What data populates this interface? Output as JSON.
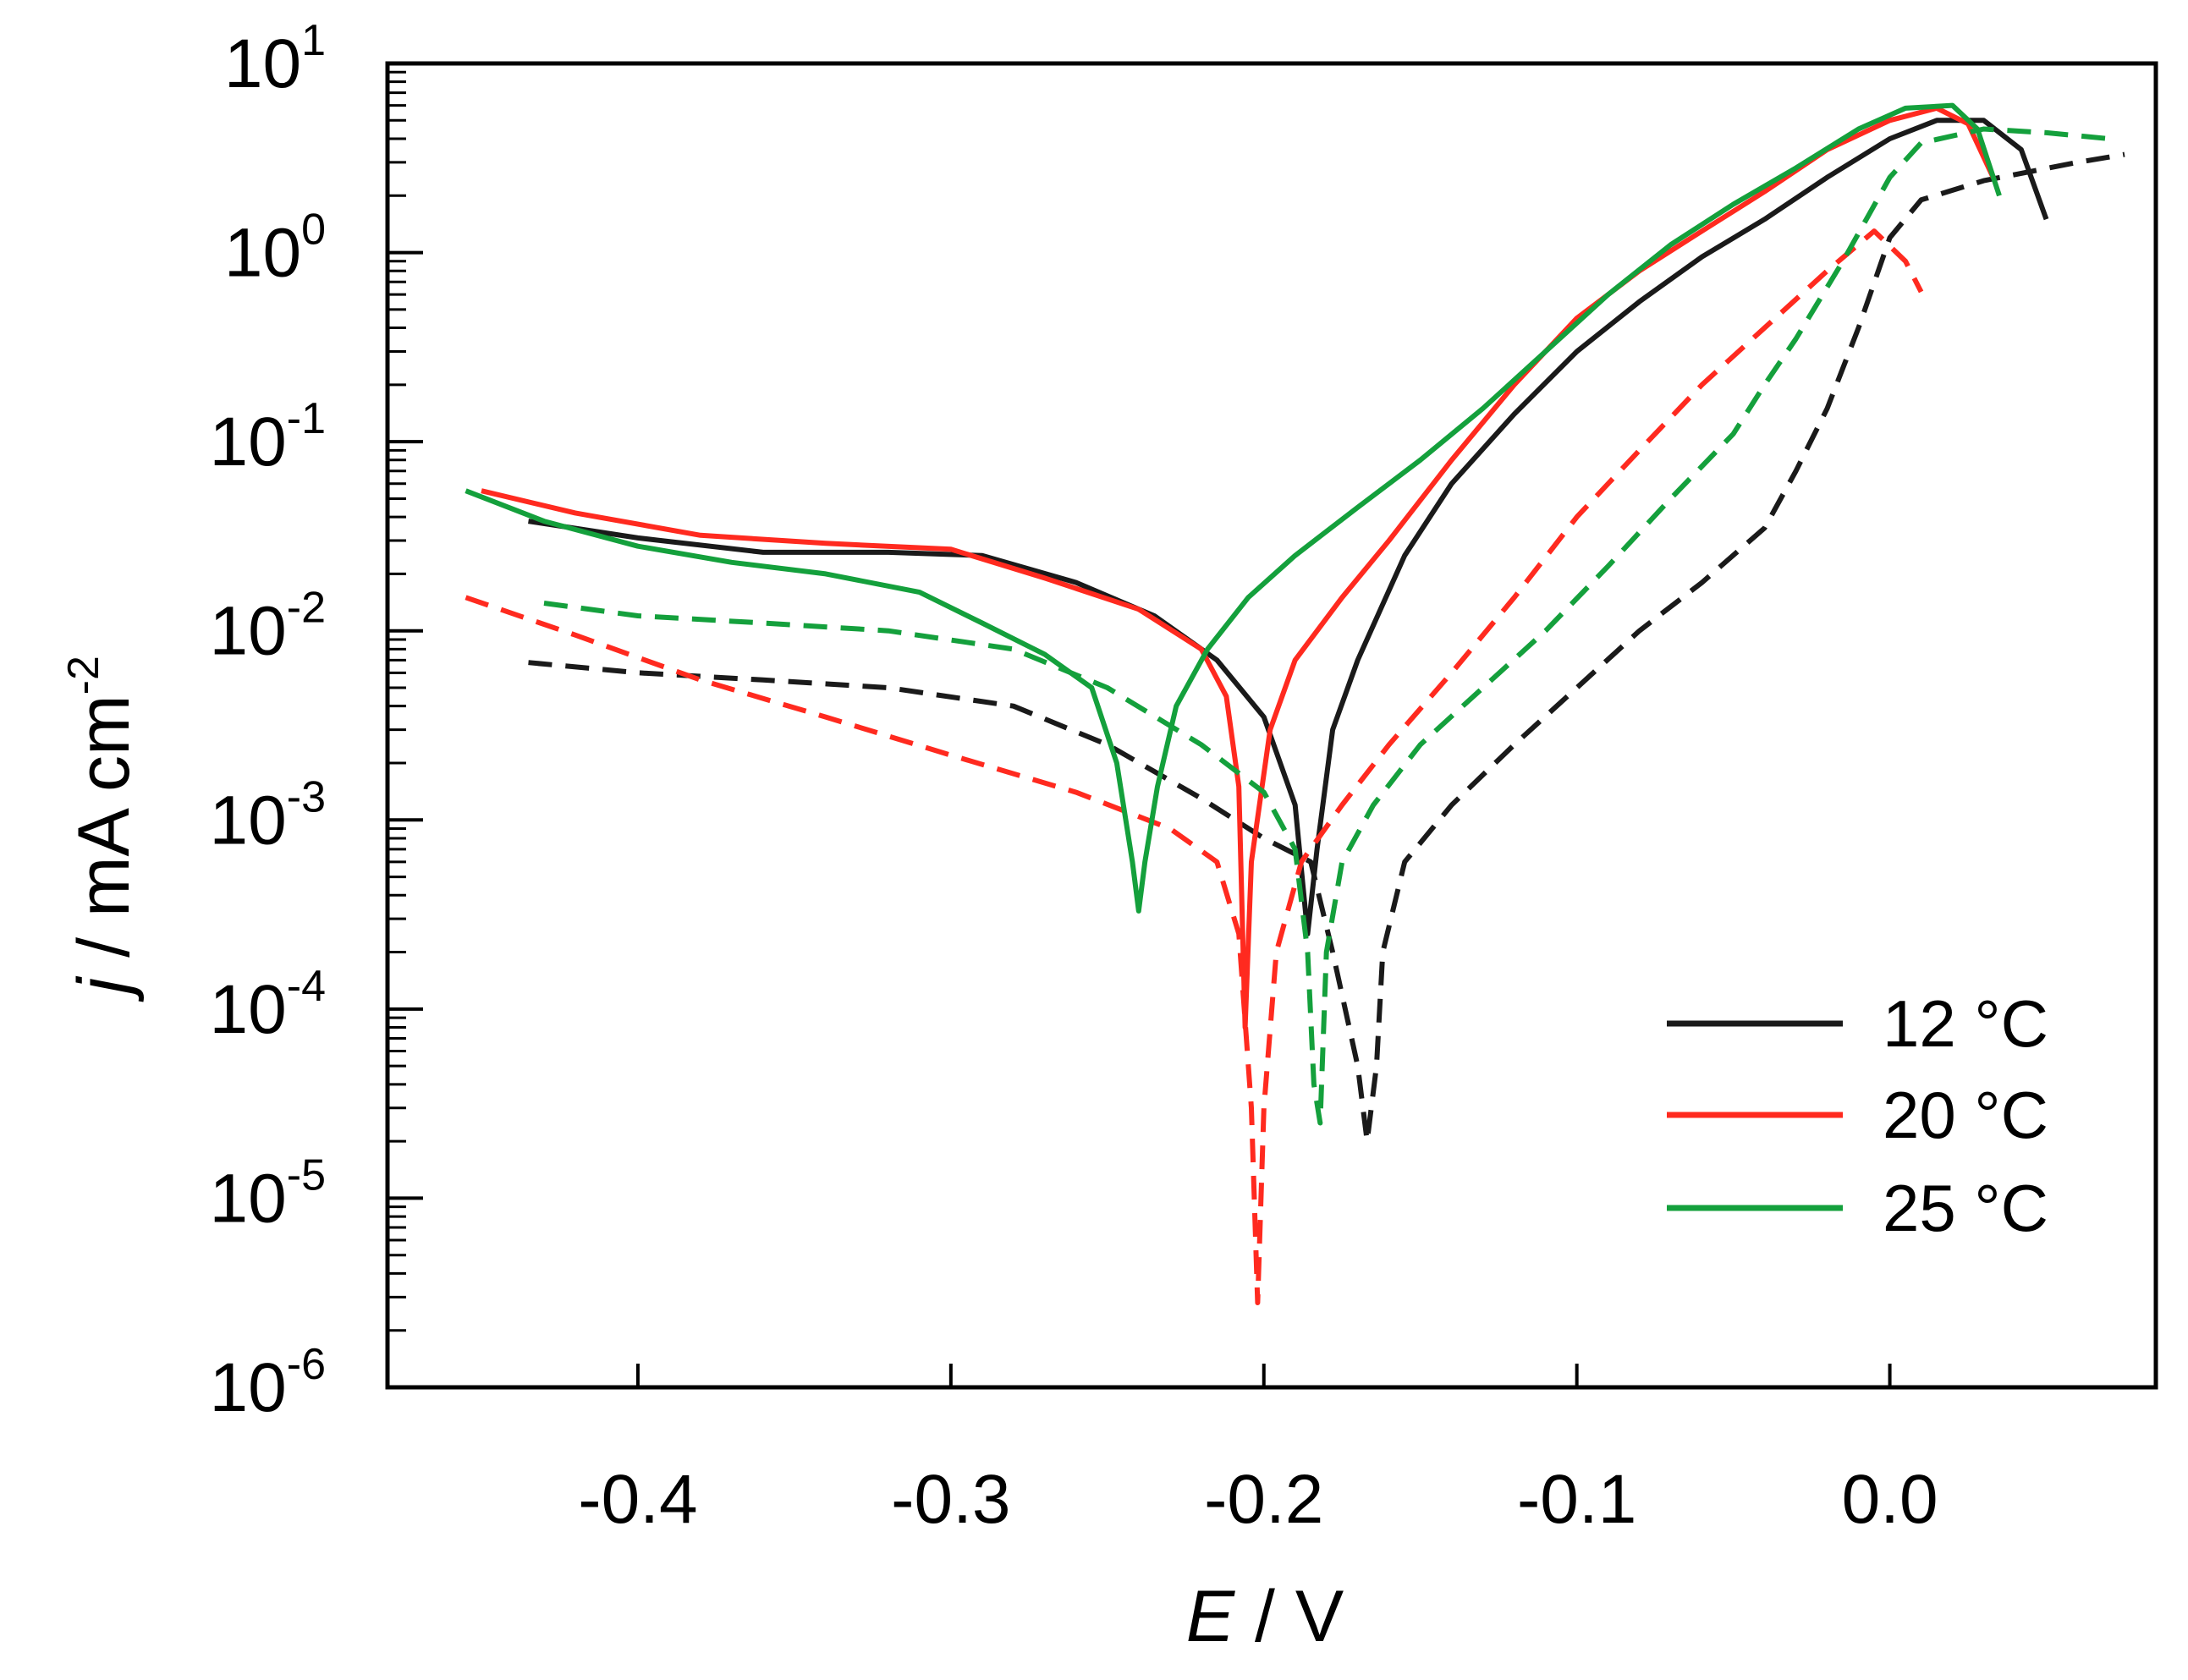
{
  "chart_data": {
    "type": "line",
    "title": "",
    "xlabel": {
      "var": "E",
      "unit": " / V"
    },
    "ylabel": {
      "var": "j",
      "unit": " / mA cm",
      "exp": "-2"
    },
    "xlim": [
      -0.48,
      0.085
    ],
    "ylim_log10": [
      -6,
      1
    ],
    "y_scale": "log",
    "x_ticks": [
      {
        "value": -0.4,
        "label": "-0.4"
      },
      {
        "value": -0.3,
        "label": "-0.3"
      },
      {
        "value": -0.2,
        "label": "-0.2"
      },
      {
        "value": -0.1,
        "label": "-0.1"
      },
      {
        "value": 0.0,
        "label": "0.0"
      }
    ],
    "y_ticks": [
      {
        "exp": 1,
        "base": "10",
        "sup": "1"
      },
      {
        "exp": 0,
        "base": "10",
        "sup": "0"
      },
      {
        "exp": -1,
        "base": "10",
        "sup": "-1"
      },
      {
        "exp": -2,
        "base": "10",
        "sup": "-2"
      },
      {
        "exp": -3,
        "base": "10",
        "sup": "-3"
      },
      {
        "exp": -4,
        "base": "10",
        "sup": "-4"
      },
      {
        "exp": -5,
        "base": "10",
        "sup": "-5"
      },
      {
        "exp": -6,
        "base": "10",
        "sup": "-6"
      }
    ],
    "legend": {
      "position": "lower-right",
      "entries": [
        {
          "label": "12 °C",
          "color": "#1a1a1a"
        },
        {
          "label": "20 °C",
          "color": "#ff2a1f"
        },
        {
          "label": "25 °C",
          "color": "#14a03c"
        }
      ]
    },
    "series": [
      {
        "name": "12 °C solid",
        "color": "#1a1a1a",
        "dash": "solid",
        "points": [
          [
            -0.435,
            0.038
          ],
          [
            -0.4,
            0.031
          ],
          [
            -0.36,
            0.026
          ],
          [
            -0.32,
            0.026
          ],
          [
            -0.29,
            0.025
          ],
          [
            -0.26,
            0.018
          ],
          [
            -0.235,
            0.012
          ],
          [
            -0.215,
            0.007
          ],
          [
            -0.2,
            0.0035
          ],
          [
            -0.19,
            0.0012
          ],
          [
            -0.186,
            0.00025
          ],
          [
            -0.183,
            0.0007
          ],
          [
            -0.178,
            0.003
          ],
          [
            -0.17,
            0.007
          ],
          [
            -0.155,
            0.025
          ],
          [
            -0.14,
            0.06
          ],
          [
            -0.12,
            0.14
          ],
          [
            -0.1,
            0.3
          ],
          [
            -0.08,
            0.55
          ],
          [
            -0.06,
            0.95
          ],
          [
            -0.04,
            1.5
          ],
          [
            -0.02,
            2.5
          ],
          [
            0.0,
            4.0
          ],
          [
            0.015,
            5.0
          ],
          [
            0.03,
            5.0
          ],
          [
            0.042,
            3.5
          ],
          [
            0.05,
            1.5
          ]
        ]
      },
      {
        "name": "12 °C dashed",
        "color": "#1a1a1a",
        "dash": "dashed",
        "points": [
          [
            -0.435,
            0.0068
          ],
          [
            -0.4,
            0.006
          ],
          [
            -0.36,
            0.0055
          ],
          [
            -0.32,
            0.005
          ],
          [
            -0.28,
            0.004
          ],
          [
            -0.25,
            0.0025
          ],
          [
            -0.22,
            0.0013
          ],
          [
            -0.2,
            0.0008
          ],
          [
            -0.185,
            0.0006
          ],
          [
            -0.178,
            0.0002
          ],
          [
            -0.17,
            5e-05
          ],
          [
            -0.167,
            2e-05
          ],
          [
            -0.164,
            5e-05
          ],
          [
            -0.162,
            0.0002
          ],
          [
            -0.155,
            0.0006
          ],
          [
            -0.14,
            0.0012
          ],
          [
            -0.12,
            0.0025
          ],
          [
            -0.1,
            0.005
          ],
          [
            -0.08,
            0.01
          ],
          [
            -0.06,
            0.018
          ],
          [
            -0.04,
            0.035
          ],
          [
            -0.03,
            0.07
          ],
          [
            -0.02,
            0.15
          ],
          [
            -0.01,
            0.4
          ],
          [
            0.0,
            1.2
          ],
          [
            0.01,
            1.9
          ],
          [
            0.03,
            2.4
          ],
          [
            0.06,
            3.0
          ],
          [
            0.075,
            3.3
          ]
        ]
      },
      {
        "name": "20 °C solid",
        "color": "#ff2a1f",
        "dash": "solid",
        "points": [
          [
            -0.45,
            0.055
          ],
          [
            -0.42,
            0.042
          ],
          [
            -0.38,
            0.032
          ],
          [
            -0.34,
            0.029
          ],
          [
            -0.3,
            0.027
          ],
          [
            -0.27,
            0.019
          ],
          [
            -0.24,
            0.013
          ],
          [
            -0.22,
            0.008
          ],
          [
            -0.212,
            0.0045
          ],
          [
            -0.208,
            0.0015
          ],
          [
            -0.206,
            8e-05
          ],
          [
            -0.204,
            0.0006
          ],
          [
            -0.198,
            0.003
          ],
          [
            -0.19,
            0.007
          ],
          [
            -0.175,
            0.015
          ],
          [
            -0.16,
            0.03
          ],
          [
            -0.14,
            0.08
          ],
          [
            -0.12,
            0.2
          ],
          [
            -0.1,
            0.45
          ],
          [
            -0.08,
            0.8
          ],
          [
            -0.06,
            1.3
          ],
          [
            -0.04,
            2.1
          ],
          [
            -0.02,
            3.5
          ],
          [
            0.0,
            5.0
          ],
          [
            0.015,
            5.8
          ],
          [
            0.025,
            4.8
          ],
          [
            0.033,
            2.5
          ]
        ]
      },
      {
        "name": "20 °C dashed",
        "color": "#ff2a1f",
        "dash": "dashed",
        "points": [
          [
            -0.455,
            0.015
          ],
          [
            -0.42,
            0.0095
          ],
          [
            -0.38,
            0.0055
          ],
          [
            -0.34,
            0.0035
          ],
          [
            -0.3,
            0.0022
          ],
          [
            -0.26,
            0.0014
          ],
          [
            -0.23,
            0.0009
          ],
          [
            -0.215,
            0.0006
          ],
          [
            -0.208,
            0.00025
          ],
          [
            -0.204,
            3e-05
          ],
          [
            -0.202,
            2.8e-06
          ],
          [
            -0.2,
            3e-05
          ],
          [
            -0.196,
            0.0002
          ],
          [
            -0.188,
            0.0006
          ],
          [
            -0.175,
            0.0012
          ],
          [
            -0.16,
            0.0025
          ],
          [
            -0.14,
            0.006
          ],
          [
            -0.12,
            0.015
          ],
          [
            -0.1,
            0.04
          ],
          [
            -0.08,
            0.09
          ],
          [
            -0.06,
            0.2
          ],
          [
            -0.04,
            0.4
          ],
          [
            -0.02,
            0.8
          ],
          [
            -0.005,
            1.3
          ],
          [
            0.005,
            0.9
          ],
          [
            0.01,
            0.62
          ]
        ]
      },
      {
        "name": "25 °C solid",
        "color": "#14a03c",
        "dash": "solid",
        "points": [
          [
            -0.455,
            0.055
          ],
          [
            -0.43,
            0.038
          ],
          [
            -0.4,
            0.028
          ],
          [
            -0.37,
            0.023
          ],
          [
            -0.34,
            0.02
          ],
          [
            -0.31,
            0.016
          ],
          [
            -0.29,
            0.011
          ],
          [
            -0.27,
            0.0075
          ],
          [
            -0.255,
            0.005
          ],
          [
            -0.247,
            0.002
          ],
          [
            -0.242,
            0.0006
          ],
          [
            -0.24,
            0.00033
          ],
          [
            -0.238,
            0.0006
          ],
          [
            -0.234,
            0.0015
          ],
          [
            -0.228,
            0.004
          ],
          [
            -0.218,
            0.008
          ],
          [
            -0.205,
            0.015
          ],
          [
            -0.19,
            0.025
          ],
          [
            -0.17,
            0.045
          ],
          [
            -0.15,
            0.08
          ],
          [
            -0.13,
            0.15
          ],
          [
            -0.11,
            0.3
          ],
          [
            -0.09,
            0.6
          ],
          [
            -0.07,
            1.1
          ],
          [
            -0.05,
            1.8
          ],
          [
            -0.03,
            2.8
          ],
          [
            -0.01,
            4.5
          ],
          [
            0.005,
            5.8
          ],
          [
            0.02,
            6.0
          ],
          [
            0.028,
            4.5
          ],
          [
            0.035,
            2.0
          ]
        ]
      },
      {
        "name": "25 °C dashed",
        "color": "#14a03c",
        "dash": "dashed",
        "points": [
          [
            -0.43,
            0.014
          ],
          [
            -0.4,
            0.012
          ],
          [
            -0.36,
            0.011
          ],
          [
            -0.32,
            0.01
          ],
          [
            -0.28,
            0.008
          ],
          [
            -0.25,
            0.005
          ],
          [
            -0.22,
            0.0025
          ],
          [
            -0.2,
            0.0014
          ],
          [
            -0.19,
            0.0007
          ],
          [
            -0.186,
            0.0002
          ],
          [
            -0.184,
            4e-05
          ],
          [
            -0.182,
            2.5e-05
          ],
          [
            -0.18,
            0.0002
          ],
          [
            -0.175,
            0.0006
          ],
          [
            -0.165,
            0.0012
          ],
          [
            -0.15,
            0.0025
          ],
          [
            -0.13,
            0.005
          ],
          [
            -0.11,
            0.01
          ],
          [
            -0.09,
            0.022
          ],
          [
            -0.07,
            0.05
          ],
          [
            -0.05,
            0.11
          ],
          [
            -0.04,
            0.2
          ],
          [
            -0.03,
            0.35
          ],
          [
            -0.015,
            0.9
          ],
          [
            0.0,
            2.5
          ],
          [
            0.01,
            3.8
          ],
          [
            0.03,
            4.5
          ],
          [
            0.05,
            4.3
          ],
          [
            0.07,
            4.0
          ]
        ]
      }
    ]
  }
}
